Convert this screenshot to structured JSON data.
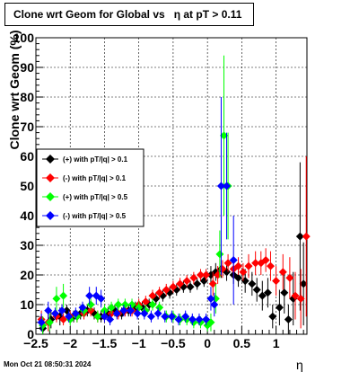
{
  "title": "Clone wrt Geom for Global vs   η at pT > 0.11",
  "timestamp": "Mon Oct 21 08:50:31 2024",
  "chart_data": {
    "type": "scatter",
    "xlabel": "η",
    "ylabel": "Clone wrt Geom (%)",
    "xlim": [
      -2.5,
      1.45
    ],
    "ylim": [
      0,
      100
    ],
    "grid": true,
    "legend_position": "left",
    "x_ticks": [
      -2.5,
      -2,
      -1.5,
      -1,
      -0.5,
      0,
      0.5,
      1
    ],
    "x_tick_labels": [
      "−2.5",
      "−2",
      "−1.5",
      "−1",
      "−0.5",
      "0",
      "0.5",
      "1"
    ],
    "y_ticks": [
      0,
      10,
      20,
      30,
      40,
      50,
      60,
      70,
      80,
      90,
      100
    ],
    "y_tick_labels": [
      "0",
      "10",
      "20",
      "30",
      "40",
      "50",
      "60",
      "70",
      "80",
      "90",
      "100"
    ],
    "series": [
      {
        "name": "(+) with pT/|q| > 0.1",
        "color": "#000000",
        "points": [
          [
            -2.4,
            2
          ],
          [
            -2.28,
            5
          ],
          [
            -2.15,
            6
          ],
          [
            -2.05,
            8
          ],
          [
            -1.95,
            6
          ],
          [
            -1.85,
            7
          ],
          [
            -1.75,
            8
          ],
          [
            -1.65,
            7
          ],
          [
            -1.55,
            6
          ],
          [
            -1.45,
            7
          ],
          [
            -1.35,
            8
          ],
          [
            -1.25,
            7
          ],
          [
            -1.15,
            8
          ],
          [
            -1.05,
            9
          ],
          [
            -0.95,
            9
          ],
          [
            -0.85,
            10
          ],
          [
            -0.75,
            12
          ],
          [
            -0.65,
            13
          ],
          [
            -0.55,
            14
          ],
          [
            -0.45,
            15
          ],
          [
            -0.35,
            16
          ],
          [
            -0.25,
            16
          ],
          [
            -0.15,
            17
          ],
          [
            -0.05,
            18
          ],
          [
            0.05,
            20
          ],
          [
            0.12,
            21
          ],
          [
            0.2,
            22
          ],
          [
            0.28,
            21
          ],
          [
            0.38,
            20
          ],
          [
            0.45,
            19
          ],
          [
            0.55,
            18
          ],
          [
            0.65,
            17
          ],
          [
            0.72,
            15
          ],
          [
            0.8,
            13
          ],
          [
            0.88,
            14
          ],
          [
            0.95,
            6
          ],
          [
            1.05,
            9
          ],
          [
            1.12,
            14
          ],
          [
            1.18,
            5
          ],
          [
            1.25,
            12
          ],
          [
            1.35,
            33
          ],
          [
            1.4,
            17
          ]
        ],
        "errors": [
          3,
          3,
          3,
          2,
          2,
          2,
          2,
          2,
          2,
          2,
          2,
          2,
          2,
          2,
          2,
          2,
          2,
          2,
          2,
          2,
          2,
          2,
          2,
          2,
          3,
          3,
          3,
          3,
          3,
          3,
          4,
          4,
          4,
          5,
          5,
          4,
          6,
          7,
          5,
          9,
          25,
          14
        ]
      },
      {
        "name": "(-) with pT/|q| > 0.1",
        "color": "#ff0000",
        "points": [
          [
            -2.42,
            5
          ],
          [
            -2.32,
            4
          ],
          [
            -2.2,
            6
          ],
          [
            -2.1,
            5
          ],
          [
            -2.0,
            6
          ],
          [
            -1.9,
            6
          ],
          [
            -1.8,
            7
          ],
          [
            -1.7,
            8
          ],
          [
            -1.6,
            6
          ],
          [
            -1.5,
            6
          ],
          [
            -1.4,
            7
          ],
          [
            -1.3,
            7
          ],
          [
            -1.2,
            8
          ],
          [
            -1.1,
            8
          ],
          [
            -1.0,
            10
          ],
          [
            -0.9,
            11
          ],
          [
            -0.8,
            13
          ],
          [
            -0.7,
            14
          ],
          [
            -0.6,
            15
          ],
          [
            -0.5,
            16
          ],
          [
            -0.4,
            17
          ],
          [
            -0.3,
            18
          ],
          [
            -0.2,
            19
          ],
          [
            -0.1,
            20
          ],
          [
            -0.02,
            20
          ],
          [
            0.08,
            17
          ],
          [
            0.15,
            20
          ],
          [
            0.22,
            22
          ],
          [
            0.3,
            24
          ],
          [
            0.38,
            22
          ],
          [
            0.45,
            23
          ],
          [
            0.52,
            21
          ],
          [
            0.6,
            23
          ],
          [
            0.7,
            24
          ],
          [
            0.78,
            24
          ],
          [
            0.85,
            25
          ],
          [
            0.92,
            23
          ],
          [
            1.0,
            18
          ],
          [
            1.1,
            21
          ],
          [
            1.2,
            19
          ],
          [
            1.28,
            13
          ],
          [
            1.36,
            12
          ],
          [
            1.44,
            33
          ]
        ],
        "errors": [
          3,
          3,
          2,
          2,
          2,
          2,
          2,
          2,
          2,
          2,
          2,
          2,
          2,
          2,
          2,
          2,
          2,
          2,
          2,
          2,
          2,
          2,
          2,
          2,
          2,
          4,
          3,
          3,
          3,
          3,
          3,
          3,
          4,
          4,
          4,
          4,
          5,
          5,
          6,
          7,
          8,
          10,
          27
        ]
      },
      {
        "name": "(+) with pT/|q| > 0.5",
        "color": "#00ff00",
        "points": [
          [
            -2.4,
            3
          ],
          [
            -2.3,
            4
          ],
          [
            -2.2,
            12
          ],
          [
            -2.1,
            13
          ],
          [
            -2.0,
            5
          ],
          [
            -1.9,
            6
          ],
          [
            -1.8,
            8
          ],
          [
            -1.7,
            10
          ],
          [
            -1.6,
            6
          ],
          [
            -1.5,
            8
          ],
          [
            -1.4,
            9
          ],
          [
            -1.3,
            10
          ],
          [
            -1.2,
            10
          ],
          [
            -1.1,
            10
          ],
          [
            -1.0,
            9
          ],
          [
            -0.9,
            8
          ],
          [
            -0.8,
            10
          ],
          [
            -0.7,
            9
          ],
          [
            -0.6,
            6
          ],
          [
            -0.5,
            6
          ],
          [
            -0.4,
            5
          ],
          [
            -0.3,
            5
          ],
          [
            -0.2,
            4
          ],
          [
            -0.1,
            4
          ],
          [
            0.0,
            3
          ],
          [
            0.05,
            4
          ],
          [
            0.12,
            12
          ],
          [
            0.18,
            27
          ],
          [
            0.24,
            67
          ],
          [
            0.3,
            50
          ]
        ],
        "errors": [
          3,
          3,
          4,
          4,
          2,
          2,
          2,
          2,
          2,
          2,
          2,
          2,
          2,
          2,
          2,
          2,
          2,
          2,
          2,
          2,
          2,
          2,
          2,
          2,
          2,
          3,
          5,
          8,
          27,
          18
        ]
      },
      {
        "name": "(-) with pT/|q| > 0.5",
        "color": "#0000ff",
        "points": [
          [
            -2.42,
            4
          ],
          [
            -2.32,
            8
          ],
          [
            -2.22,
            7
          ],
          [
            -2.12,
            8
          ],
          [
            -2.02,
            6
          ],
          [
            -1.92,
            7
          ],
          [
            -1.82,
            9
          ],
          [
            -1.72,
            13
          ],
          [
            -1.62,
            13
          ],
          [
            -1.55,
            12
          ],
          [
            -1.5,
            6
          ],
          [
            -1.42,
            5
          ],
          [
            -1.32,
            7
          ],
          [
            -1.22,
            8
          ],
          [
            -1.12,
            8
          ],
          [
            -1.02,
            7
          ],
          [
            -0.92,
            7
          ],
          [
            -0.82,
            6
          ],
          [
            -0.72,
            7
          ],
          [
            -0.62,
            6
          ],
          [
            -0.52,
            6
          ],
          [
            -0.42,
            5
          ],
          [
            -0.32,
            6
          ],
          [
            -0.22,
            5
          ],
          [
            -0.12,
            5
          ],
          [
            -0.02,
            5
          ],
          [
            0.05,
            12
          ],
          [
            0.1,
            10
          ],
          [
            0.2,
            50
          ],
          [
            0.28,
            50
          ],
          [
            0.38,
            25
          ]
        ],
        "errors": [
          3,
          3,
          2,
          2,
          2,
          2,
          2,
          3,
          3,
          3,
          2,
          2,
          2,
          2,
          2,
          2,
          2,
          2,
          2,
          2,
          2,
          2,
          2,
          2,
          2,
          2,
          4,
          4,
          30,
          18,
          15
        ]
      }
    ]
  }
}
